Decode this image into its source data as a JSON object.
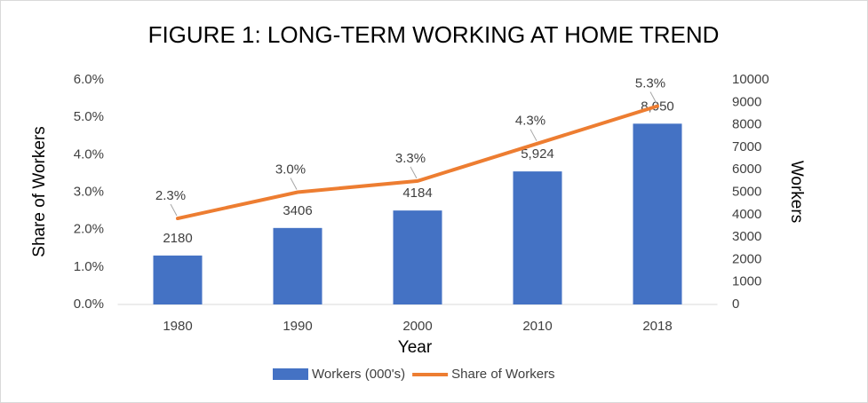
{
  "chart_data": {
    "type": "bar-line",
    "title": "FIGURE 1: LONG-TERM WORKING AT HOME TREND",
    "x_label": "Year",
    "y_label": "Share of Workers",
    "y2_label": "Workers",
    "categories": [
      "1980",
      "1990",
      "2000",
      "2010",
      "2018"
    ],
    "series": [
      {
        "name": "Workers (000's)",
        "type": "bar",
        "axis": "y2",
        "color": "#4472c4",
        "values": [
          2180,
          3406,
          4184,
          5924,
          8050
        ],
        "value_labels": [
          "2180",
          "3406",
          "4184",
          "5,924",
          "8,050"
        ]
      },
      {
        "name": "Share of Workers",
        "type": "line",
        "axis": "y",
        "color": "#ed7d31",
        "values": [
          2.3,
          3.0,
          3.3,
          4.3,
          5.3
        ],
        "value_labels": [
          "2.3%",
          "3.0%",
          "3.3%",
          "4.3%",
          "5.3%"
        ]
      }
    ],
    "ylim": [
      0,
      6
    ],
    "yticks": [
      {
        "value": 0,
        "label": "0.0%"
      },
      {
        "value": 1,
        "label": "1.0%"
      },
      {
        "value": 2,
        "label": "2.0%"
      },
      {
        "value": 3,
        "label": "3.0%"
      },
      {
        "value": 4,
        "label": "4.0%"
      },
      {
        "value": 5,
        "label": "5.0%"
      },
      {
        "value": 6,
        "label": "6.0%"
      }
    ],
    "y2lim": [
      0,
      10000
    ],
    "y2ticks": [
      0,
      1000,
      2000,
      3000,
      4000,
      5000,
      6000,
      7000,
      8000,
      9000,
      10000
    ],
    "legend": "bottom"
  }
}
